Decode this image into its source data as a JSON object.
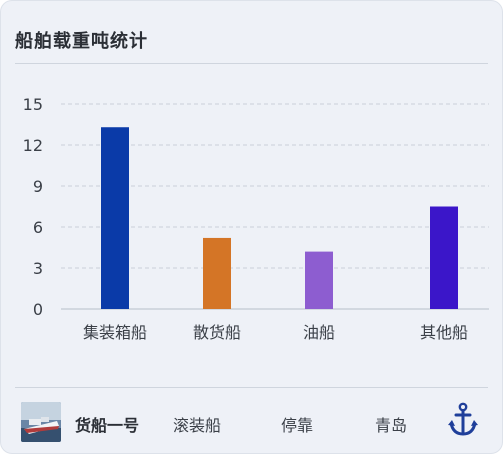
{
  "title": "船舶载重吨统计",
  "chart_data": {
    "type": "bar",
    "categories": [
      "集装箱船",
      "散货船",
      "油船",
      "其他船"
    ],
    "values": [
      13.3,
      5.2,
      4.2,
      7.5
    ],
    "colors": [
      "#0a3aa8",
      "#d47526",
      "#8d5dd0",
      "#3b16c9"
    ],
    "yticks": [
      0,
      3,
      6,
      9,
      12,
      15
    ],
    "ylim": [
      0,
      15
    ],
    "grid": true,
    "title": "",
    "xlabel": "",
    "ylabel": ""
  },
  "footer": {
    "ship_name": "货船一号",
    "ship_type": "滚装船",
    "status": "停靠",
    "port": "青岛",
    "thumbnail_icon": "ship-photo-icon",
    "action_icon": "anchor-icon",
    "accent_color": "#1f3f9a"
  }
}
